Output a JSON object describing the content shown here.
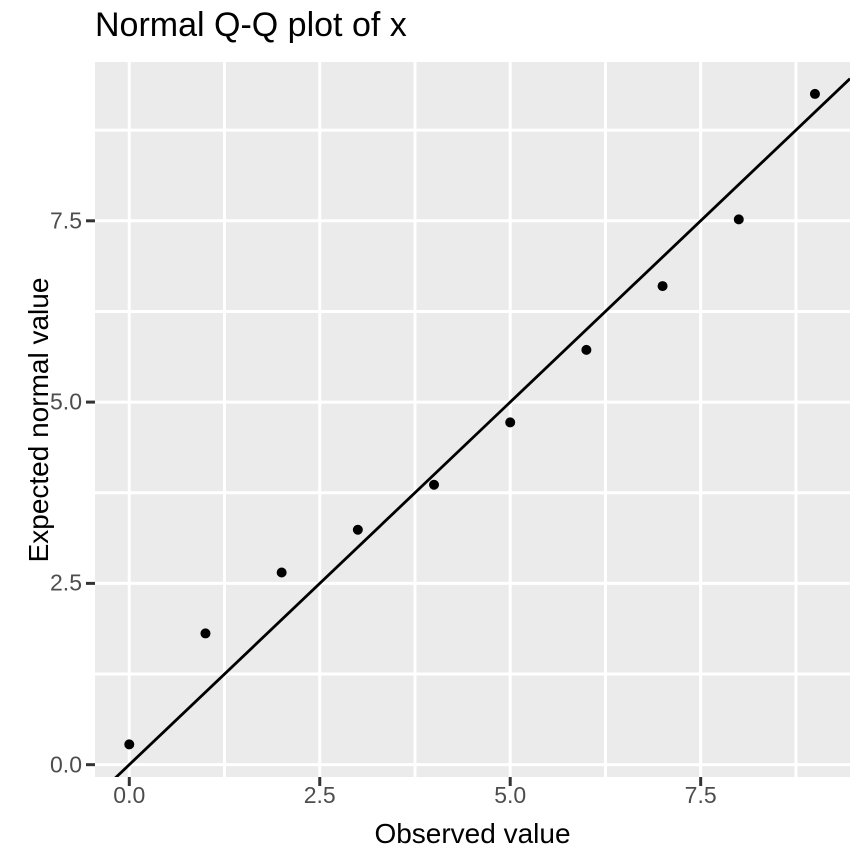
{
  "chart_data": {
    "type": "scatter",
    "title": "Normal Q-Q plot of x",
    "xlabel": "Observed value",
    "ylabel": "Expected normal value",
    "x_ticks": [
      {
        "value": 0,
        "label": "0.0"
      },
      {
        "value": 2.5,
        "label": "2.5"
      },
      {
        "value": 5,
        "label": "5.0"
      },
      {
        "value": 7.5,
        "label": "7.5"
      }
    ],
    "y_ticks": [
      {
        "value": 0,
        "label": "0.0"
      },
      {
        "value": 2.5,
        "label": "2.5"
      },
      {
        "value": 5,
        "label": "5.0"
      },
      {
        "value": 7.5,
        "label": "7.5"
      }
    ],
    "x_minor": [
      1.25,
      3.75,
      6.25,
      8.75
    ],
    "y_minor": [
      1.25,
      3.75,
      6.25,
      8.75
    ],
    "xlim": [
      -0.45,
      9.46
    ],
    "ylim": [
      -0.17,
      9.69
    ],
    "points": [
      {
        "x": 0,
        "y": 0.28
      },
      {
        "x": 1,
        "y": 1.81
      },
      {
        "x": 2,
        "y": 2.65
      },
      {
        "x": 3,
        "y": 3.24
      },
      {
        "x": 4,
        "y": 3.86
      },
      {
        "x": 5,
        "y": 4.72
      },
      {
        "x": 6,
        "y": 5.72
      },
      {
        "x": 7,
        "y": 6.6
      },
      {
        "x": 8,
        "y": 7.52
      },
      {
        "x": 9,
        "y": 9.25
      }
    ],
    "reference_line": {
      "slope": 1,
      "intercept": 0
    },
    "legend": "none",
    "grid": "major-and-minor",
    "style": {
      "figure_bg": "#FFFFFF",
      "panel_bg": "#EBEBEB",
      "grid_color": "#FFFFFF",
      "point_color": "#000000",
      "line_color": "#000000",
      "tick_mark_color": "#333333",
      "tick_label_color": "#4D4D4D",
      "text_color": "#000000"
    }
  }
}
